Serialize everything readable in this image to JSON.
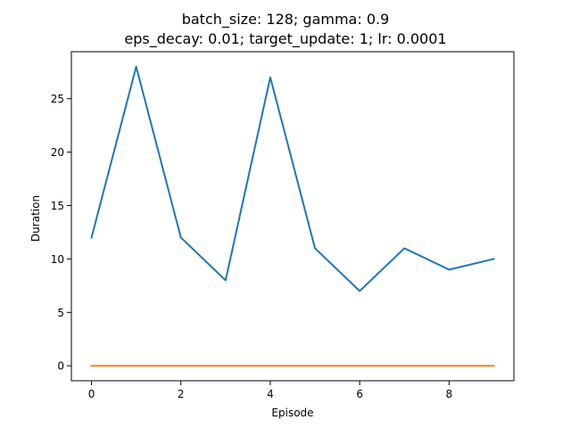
{
  "chart_data": {
    "type": "line",
    "title": "batch_size: 128; gamma: 0.9",
    "subtitle": "eps_decay: 0.01; target_update: 1; lr: 0.0001",
    "xlabel": "Episode",
    "ylabel": "Duration",
    "x": [
      0,
      1,
      2,
      3,
      4,
      5,
      6,
      7,
      8,
      9
    ],
    "xlim": [
      -0.45,
      9.45
    ],
    "ylim": [
      -1.4,
      29.4
    ],
    "xticks": [
      0,
      2,
      4,
      6,
      8
    ],
    "yticks": [
      0,
      5,
      10,
      15,
      20,
      25
    ],
    "grid": false,
    "series": [
      {
        "color": "#1f77b4",
        "values": [
          12,
          28,
          12,
          8,
          27,
          11,
          7,
          11,
          9,
          10
        ]
      },
      {
        "color": "#ff7f0e",
        "values": [
          0,
          0,
          0,
          0,
          0,
          0,
          0,
          0,
          0,
          0
        ]
      }
    ]
  }
}
